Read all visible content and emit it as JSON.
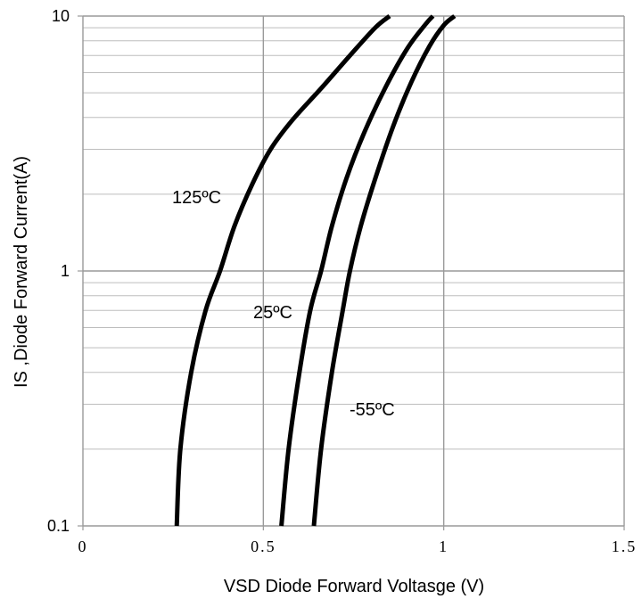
{
  "chart_data": {
    "type": "line",
    "title": "",
    "xlabel": "VSD Diode Forward Voltasge (V)",
    "ylabel": "IS ,Diode Forward Current(A)",
    "xlim": [
      0,
      1.5
    ],
    "ylim": [
      0.1,
      10
    ],
    "yscale": "log",
    "grid": true,
    "x_ticks": [
      "0",
      "0.5",
      "1",
      "1.5"
    ],
    "y_ticks": [
      "0.1",
      "1",
      "10"
    ],
    "series": [
      {
        "name": "125ºC",
        "points": [
          [
            0.26,
            0.1
          ],
          [
            0.27,
            0.2
          ],
          [
            0.3,
            0.4
          ],
          [
            0.34,
            0.7
          ],
          [
            0.38,
            1.0
          ],
          [
            0.42,
            1.5
          ],
          [
            0.47,
            2.2
          ],
          [
            0.52,
            3.0
          ],
          [
            0.58,
            3.9
          ],
          [
            0.66,
            5.2
          ],
          [
            0.74,
            7.0
          ],
          [
            0.81,
            9.0
          ],
          [
            0.85,
            10.0
          ]
        ]
      },
      {
        "name": "25ºC",
        "points": [
          [
            0.55,
            0.1
          ],
          [
            0.57,
            0.2
          ],
          [
            0.6,
            0.4
          ],
          [
            0.63,
            0.7
          ],
          [
            0.66,
            1.0
          ],
          [
            0.69,
            1.5
          ],
          [
            0.73,
            2.3
          ],
          [
            0.78,
            3.5
          ],
          [
            0.84,
            5.3
          ],
          [
            0.9,
            7.5
          ],
          [
            0.95,
            9.3
          ],
          [
            0.97,
            10.0
          ]
        ]
      },
      {
        "name": "-55ºC",
        "points": [
          [
            0.64,
            0.1
          ],
          [
            0.66,
            0.2
          ],
          [
            0.69,
            0.4
          ],
          [
            0.72,
            0.7
          ],
          [
            0.74,
            1.0
          ],
          [
            0.77,
            1.5
          ],
          [
            0.81,
            2.3
          ],
          [
            0.86,
            3.7
          ],
          [
            0.91,
            5.5
          ],
          [
            0.96,
            7.6
          ],
          [
            1.0,
            9.2
          ],
          [
            1.03,
            10.0
          ]
        ]
      }
    ],
    "label_positions": [
      "upper-left of 125ºC curve",
      "left of 25ºC curve",
      "right of -55ºC curve"
    ]
  }
}
